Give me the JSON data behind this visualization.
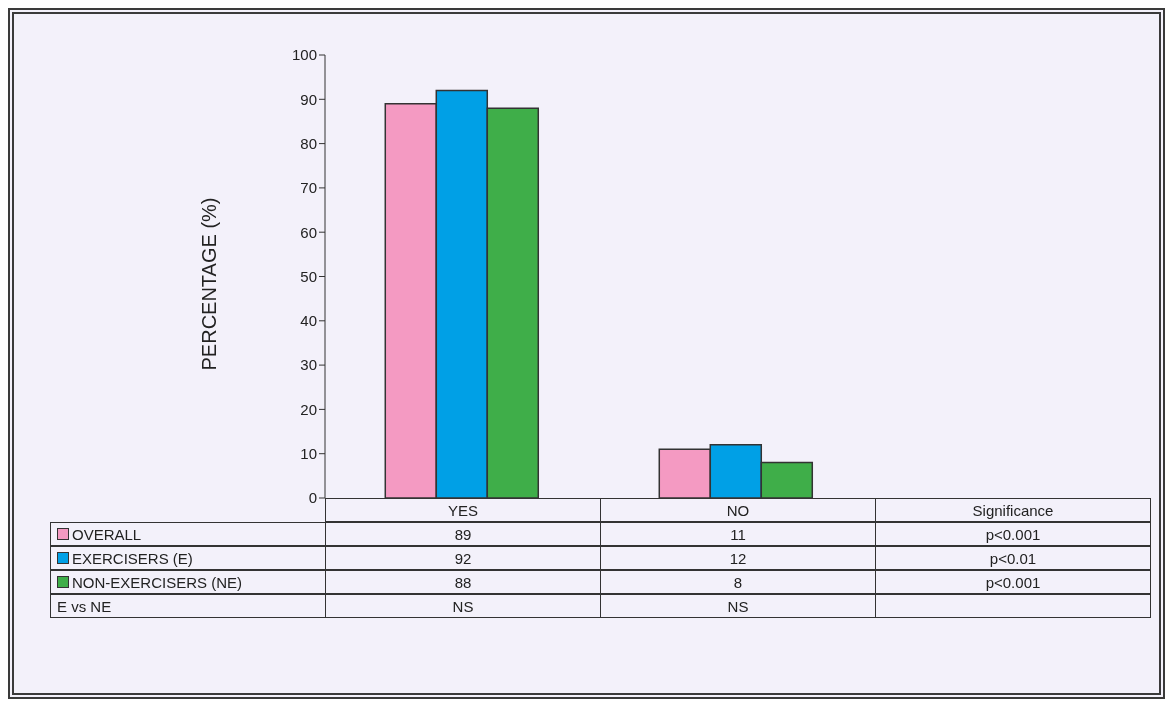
{
  "chart_data": {
    "type": "bar",
    "ylabel": "PERCENTAGE (%)",
    "categories": [
      "YES",
      "NO",
      "Significance"
    ],
    "series": [
      {
        "name": "OVERALL",
        "color": "#f49ac2",
        "values": [
          89,
          11,
          null
        ],
        "value_labels": [
          "89",
          "11",
          "p<0.001"
        ]
      },
      {
        "name": "EXERCISERS (E)",
        "color": "#00a0e6",
        "values": [
          92,
          12,
          null
        ],
        "value_labels": [
          "92",
          "12",
          "p<0.01"
        ]
      },
      {
        "name": "NON-EXERCISERS (NE)",
        "color": "#3fae49",
        "values": [
          88,
          8,
          null
        ],
        "value_labels": [
          "88",
          "8",
          "p<0.001"
        ]
      }
    ],
    "ylim": [
      0,
      100
    ],
    "yticks": [
      0,
      10,
      20,
      30,
      40,
      50,
      60,
      70,
      80,
      90,
      100
    ],
    "legend": "bottom left",
    "annotations": [
      "E vs NE",
      "NS",
      "NS"
    ]
  }
}
